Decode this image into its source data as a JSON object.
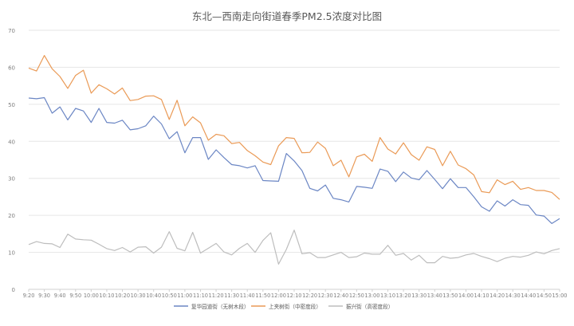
{
  "chart_data": {
    "type": "line",
    "title": "东北—西南走向街道春季PM2.5浓度对比图",
    "xlabel": "",
    "ylabel": "",
    "ylim": [
      0,
      70
    ],
    "yticks": [
      0,
      10,
      20,
      30,
      40,
      50,
      60,
      70
    ],
    "grid": true,
    "legend_position": "bottom",
    "x_tick_labels": [
      "9:20",
      "9:30",
      "9:40",
      "9:50",
      "10:00",
      "10:10",
      "10:20",
      "10:30",
      "10:40",
      "10:50",
      "11:00",
      "11:10",
      "11:20",
      "11:30",
      "11:40",
      "11:50",
      "12:00",
      "12:10",
      "12:20",
      "12:30",
      "12:40",
      "12:50",
      "13:00",
      "13:10",
      "13:20",
      "13:30",
      "13:40",
      "13:50",
      "14:00",
      "14:10",
      "14:20",
      "14:30",
      "14:40",
      "14:50",
      "15:00"
    ],
    "points_per_tick": 2,
    "series": [
      {
        "name": "复华园道街（无树木段）",
        "color": "#6b86c4",
        "values": [
          51.7,
          51.5,
          51.8,
          47.6,
          49.3,
          45.8,
          48.9,
          48.2,
          45.1,
          48.9,
          45.1,
          44.9,
          45.7,
          43.1,
          43.4,
          44.2,
          46.8,
          44.7,
          40.7,
          42.6,
          36.9,
          41.0,
          41.0,
          35.1,
          37.7,
          35.6,
          33.7,
          33.4,
          32.8,
          33.4,
          29.4,
          29.3,
          29.2,
          36.7,
          34.7,
          32.1,
          27.3,
          26.6,
          28.2,
          24.6,
          24.2,
          23.6,
          27.8,
          27.6,
          27.3,
          32.5,
          31.9,
          29.1,
          31.7,
          30.1,
          29.6,
          32.1,
          29.7,
          27.2,
          29.9,
          27.5,
          27.5,
          25.0,
          22.3,
          21.1,
          23.9,
          22.5,
          24.2,
          22.9,
          22.7,
          20.1,
          19.8,
          17.8,
          19.1
        ]
      },
      {
        "name": "上夹树街（中密度段）",
        "color": "#ea9a56",
        "values": [
          59.8,
          59.0,
          63.2,
          59.6,
          57.5,
          54.3,
          57.8,
          59.2,
          53.0,
          55.3,
          54.2,
          52.8,
          54.4,
          51.0,
          51.3,
          52.2,
          52.3,
          51.3,
          45.9,
          51.1,
          44.2,
          46.6,
          45.0,
          40.3,
          41.9,
          41.5,
          39.4,
          39.7,
          37.5,
          36.1,
          34.4,
          33.7,
          38.8,
          41.0,
          40.8,
          36.9,
          37.0,
          39.8,
          38.1,
          33.4,
          34.9,
          30.4,
          35.8,
          36.5,
          34.6,
          41.0,
          37.9,
          36.6,
          39.6,
          36.4,
          34.9,
          38.5,
          37.8,
          33.4,
          37.3,
          33.6,
          32.6,
          30.9,
          26.4,
          26.1,
          29.6,
          28.3,
          29.2,
          27.0,
          27.5,
          26.7,
          26.7,
          26.2,
          24.3
        ]
      },
      {
        "name": "振兴街（高密度段）",
        "color": "#bdbdbd",
        "values": [
          12.1,
          12.9,
          12.4,
          12.3,
          11.3,
          14.9,
          13.6,
          13.4,
          13.3,
          12.2,
          11.0,
          10.5,
          11.3,
          10.1,
          11.4,
          11.5,
          9.8,
          11.4,
          15.6,
          11.1,
          10.4,
          15.4,
          9.8,
          11.1,
          12.4,
          10.1,
          9.3,
          11.1,
          12.4,
          10.0,
          13.2,
          15.3,
          6.8,
          10.8,
          16.0,
          9.6,
          9.9,
          8.6,
          8.6,
          9.3,
          10.0,
          8.6,
          8.8,
          9.8,
          9.5,
          9.5,
          11.9,
          9.2,
          9.7,
          7.9,
          9.2,
          7.2,
          7.2,
          8.9,
          8.4,
          8.6,
          9.3,
          9.7,
          8.9,
          8.3,
          7.5,
          8.4,
          8.9,
          8.7,
          9.2,
          10.1,
          9.6,
          10.5,
          11.0
        ]
      }
    ]
  }
}
